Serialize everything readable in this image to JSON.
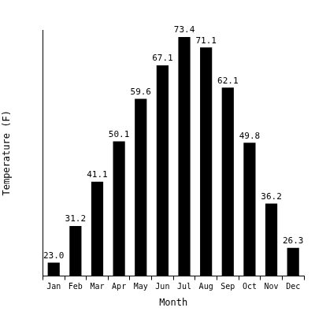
{
  "chart_data": {
    "type": "bar",
    "x_label": "Month",
    "y_label": "Temperature (F)",
    "categories": [
      "Jan",
      "Feb",
      "Mar",
      "Apr",
      "May",
      "Jun",
      "Jul",
      "Aug",
      "Sep",
      "Oct",
      "Nov",
      "Dec"
    ],
    "values": [
      23.0,
      31.2,
      41.1,
      50.1,
      59.6,
      67.1,
      73.4,
      71.1,
      62.1,
      49.8,
      36.2,
      26.3
    ],
    "value_labels": [
      "23.0",
      "31.2",
      "41.1",
      "50.1",
      "59.6",
      "67.1",
      "73.4",
      "71.1",
      "62.1",
      "49.8",
      "36.2",
      "26.3"
    ],
    "color": "#000000",
    "ylim": [
      20,
      75
    ],
    "grid": false,
    "data_labels": true,
    "tick_labels": "x"
  }
}
